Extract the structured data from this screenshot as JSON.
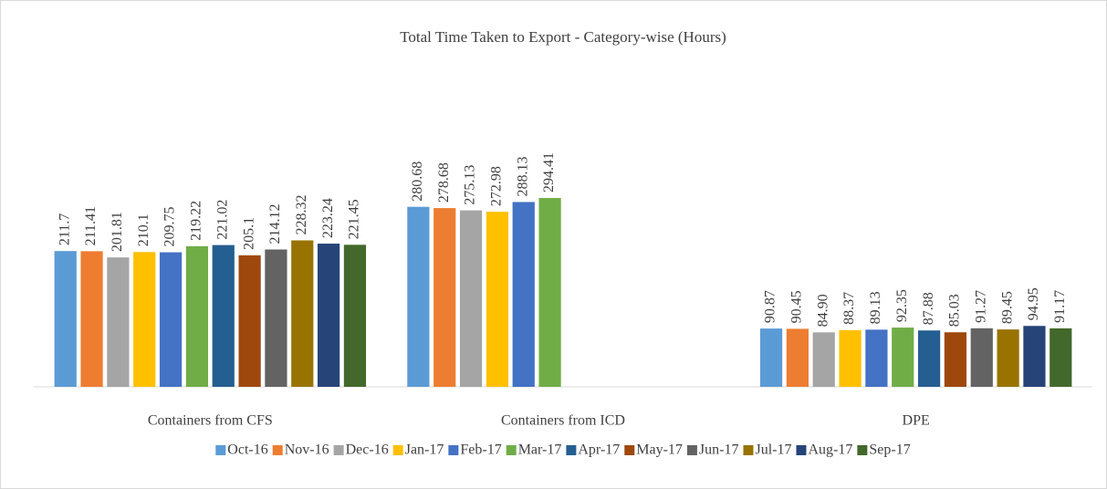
{
  "chart_data": {
    "type": "bar",
    "title": "Total Time Taken to Export - Category-wise (Hours)",
    "categories": [
      "Containers from CFS",
      "Containers from ICD",
      "DPE"
    ],
    "series": [
      {
        "name": "Oct-16",
        "color": "#5b9bd5",
        "values": [
          211.7,
          280.68,
          90.87
        ]
      },
      {
        "name": "Nov-16",
        "color": "#ed7d31",
        "values": [
          211.41,
          278.68,
          90.45
        ]
      },
      {
        "name": "Dec-16",
        "color": "#a5a5a5",
        "values": [
          201.81,
          275.13,
          84.9
        ],
        "value_labels": [
          "201.81",
          "275.13",
          "84.90"
        ]
      },
      {
        "name": "Jan-17",
        "color": "#ffc000",
        "values": [
          210.1,
          272.98,
          88.37
        ]
      },
      {
        "name": "Feb-17",
        "color": "#4472c4",
        "values": [
          209.75,
          288.13,
          89.13
        ]
      },
      {
        "name": "Mar-17",
        "color": "#70ad47",
        "values": [
          219.22,
          294.41,
          92.35
        ]
      },
      {
        "name": "Apr-17",
        "color": "#255e91",
        "values": [
          221.02,
          null,
          87.88
        ]
      },
      {
        "name": "May-17",
        "color": "#9e480e",
        "values": [
          205.1,
          null,
          85.03
        ]
      },
      {
        "name": "Jun-17",
        "color": "#636363",
        "values": [
          214.12,
          null,
          91.27
        ]
      },
      {
        "name": "Jul-17",
        "color": "#997300",
        "values": [
          228.32,
          null,
          89.45
        ]
      },
      {
        "name": "Aug-17",
        "color": "#264478",
        "values": [
          223.24,
          null,
          94.95
        ]
      },
      {
        "name": "Sep-17",
        "color": "#43682b",
        "values": [
          221.45,
          null,
          91.17
        ]
      }
    ]
  }
}
